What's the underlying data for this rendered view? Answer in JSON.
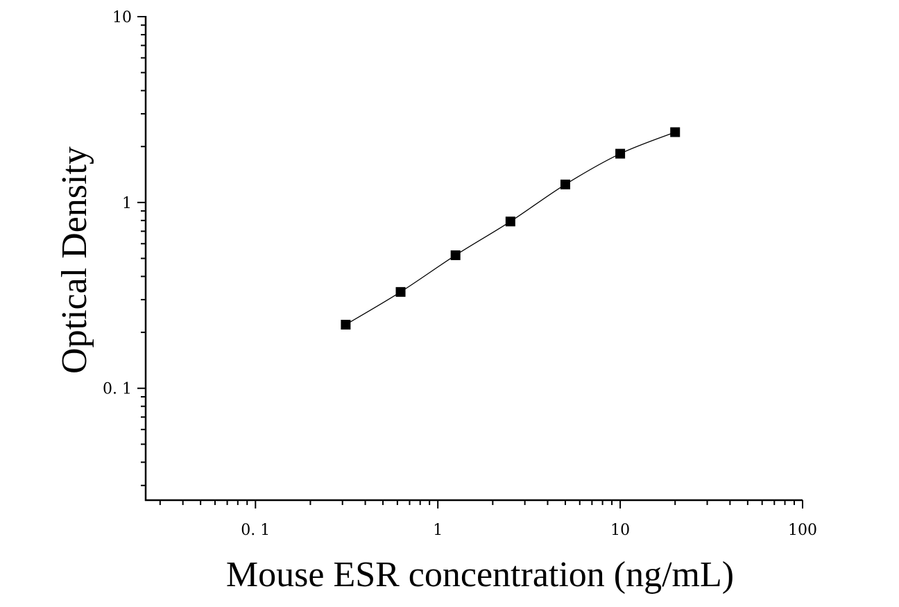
{
  "chart_data": {
    "type": "scatter",
    "title": "",
    "xlabel": "Mouse ESR concentration (ng/mL)",
    "ylabel": "Optical Density",
    "x_scale": "log",
    "y_scale": "log",
    "xlim": [
      0.025,
      100
    ],
    "ylim": [
      0.025,
      10
    ],
    "x_ticks": [
      {
        "value": 0.1,
        "label": "0. 1"
      },
      {
        "value": 1,
        "label": "1"
      },
      {
        "value": 10,
        "label": "10"
      },
      {
        "value": 100,
        "label": "100"
      }
    ],
    "y_ticks": [
      {
        "value": 0.1,
        "label": "0. 1"
      },
      {
        "value": 1,
        "label": "1"
      },
      {
        "value": 10,
        "label": "10"
      }
    ],
    "grid": false,
    "legend": "none",
    "marker": "square",
    "series": [
      {
        "x": [
          0.3125,
          0.625,
          1.25,
          2.5,
          5,
          10,
          20
        ],
        "y": [
          0.22,
          0.33,
          0.52,
          0.79,
          1.25,
          1.83,
          2.39
        ]
      }
    ],
    "fit_curve": true,
    "colors": {
      "marker": "#000000",
      "line": "#000000",
      "axis": "#000000"
    }
  }
}
